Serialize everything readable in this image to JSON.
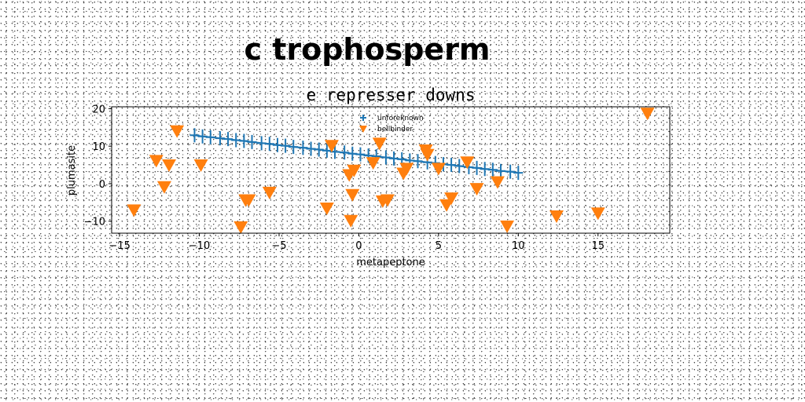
{
  "chart_data": {
    "type": "scatter",
    "suptitle": "c trophosperm",
    "title": "e represser downs",
    "xlabel": "metapeptone",
    "ylabel": "plumasite",
    "xlim": [
      -15.5,
      19.5
    ],
    "ylim": [
      -13.2,
      20.5
    ],
    "xticks": [
      -15,
      -10,
      -5,
      0,
      5,
      10,
      15
    ],
    "yticks": [
      -10,
      0,
      10,
      20
    ],
    "grid": false,
    "legend_position": "top-center",
    "colors": {
      "line_series": "#1f77b4",
      "scatter_series": "#ff7f0e"
    },
    "series": [
      {
        "name": "unforeknown",
        "marker": "plus",
        "x": [
          -10.3,
          -9.8,
          -9.3,
          -8.7,
          -8.2,
          -7.7,
          -7.2,
          -6.7,
          -6.1,
          -5.6,
          -5.1,
          -4.6,
          -4.1,
          -3.5,
          -3.0,
          -2.5,
          -2.0,
          -1.5,
          -0.9,
          -0.4,
          0.1,
          0.6,
          1.1,
          1.7,
          2.2,
          2.7,
          3.2,
          3.7,
          4.3,
          4.8,
          5.3,
          5.8,
          6.3,
          6.9,
          7.4,
          7.9,
          8.4,
          8.9,
          9.5,
          10.0
        ],
        "y": [
          12.9,
          12.6,
          12.4,
          12.1,
          11.9,
          11.6,
          11.4,
          11.1,
          10.8,
          10.6,
          10.3,
          10.1,
          9.8,
          9.6,
          9.3,
          9.1,
          8.8,
          8.5,
          8.3,
          8.0,
          7.8,
          7.5,
          7.3,
          7.0,
          6.7,
          6.5,
          6.2,
          6.0,
          5.7,
          5.5,
          5.2,
          5.0,
          4.7,
          4.4,
          4.2,
          3.9,
          3.7,
          3.4,
          3.2,
          2.9
        ]
      },
      {
        "name": "bellbinder",
        "marker": "triangle_down",
        "x": [
          -14.1,
          -12.7,
          -12.2,
          -11.9,
          -11.4,
          -9.9,
          -7.4,
          -7.1,
          -6.9,
          -5.6,
          -2.0,
          -1.7,
          -0.6,
          -0.5,
          -0.4,
          -0.3,
          0.9,
          1.3,
          1.5,
          1.8,
          2.8,
          3.0,
          4.2,
          4.3,
          5.0,
          5.5,
          5.8,
          6.8,
          7.4,
          8.7,
          9.3,
          12.4,
          15.0,
          18.1
        ],
        "y": [
          -7.0,
          6.2,
          -0.8,
          5.0,
          14.1,
          5.0,
          -11.5,
          -4.3,
          -4.3,
          -2.3,
          -6.5,
          10.2,
          2.4,
          -9.8,
          -2.9,
          3.6,
          5.6,
          10.8,
          -4.6,
          -4.3,
          2.8,
          4.1,
          9.0,
          7.8,
          4.1,
          -5.6,
          -3.8,
          5.8,
          -1.3,
          0.5,
          -11.3,
          -8.6,
          -7.8,
          18.8
        ]
      }
    ]
  }
}
